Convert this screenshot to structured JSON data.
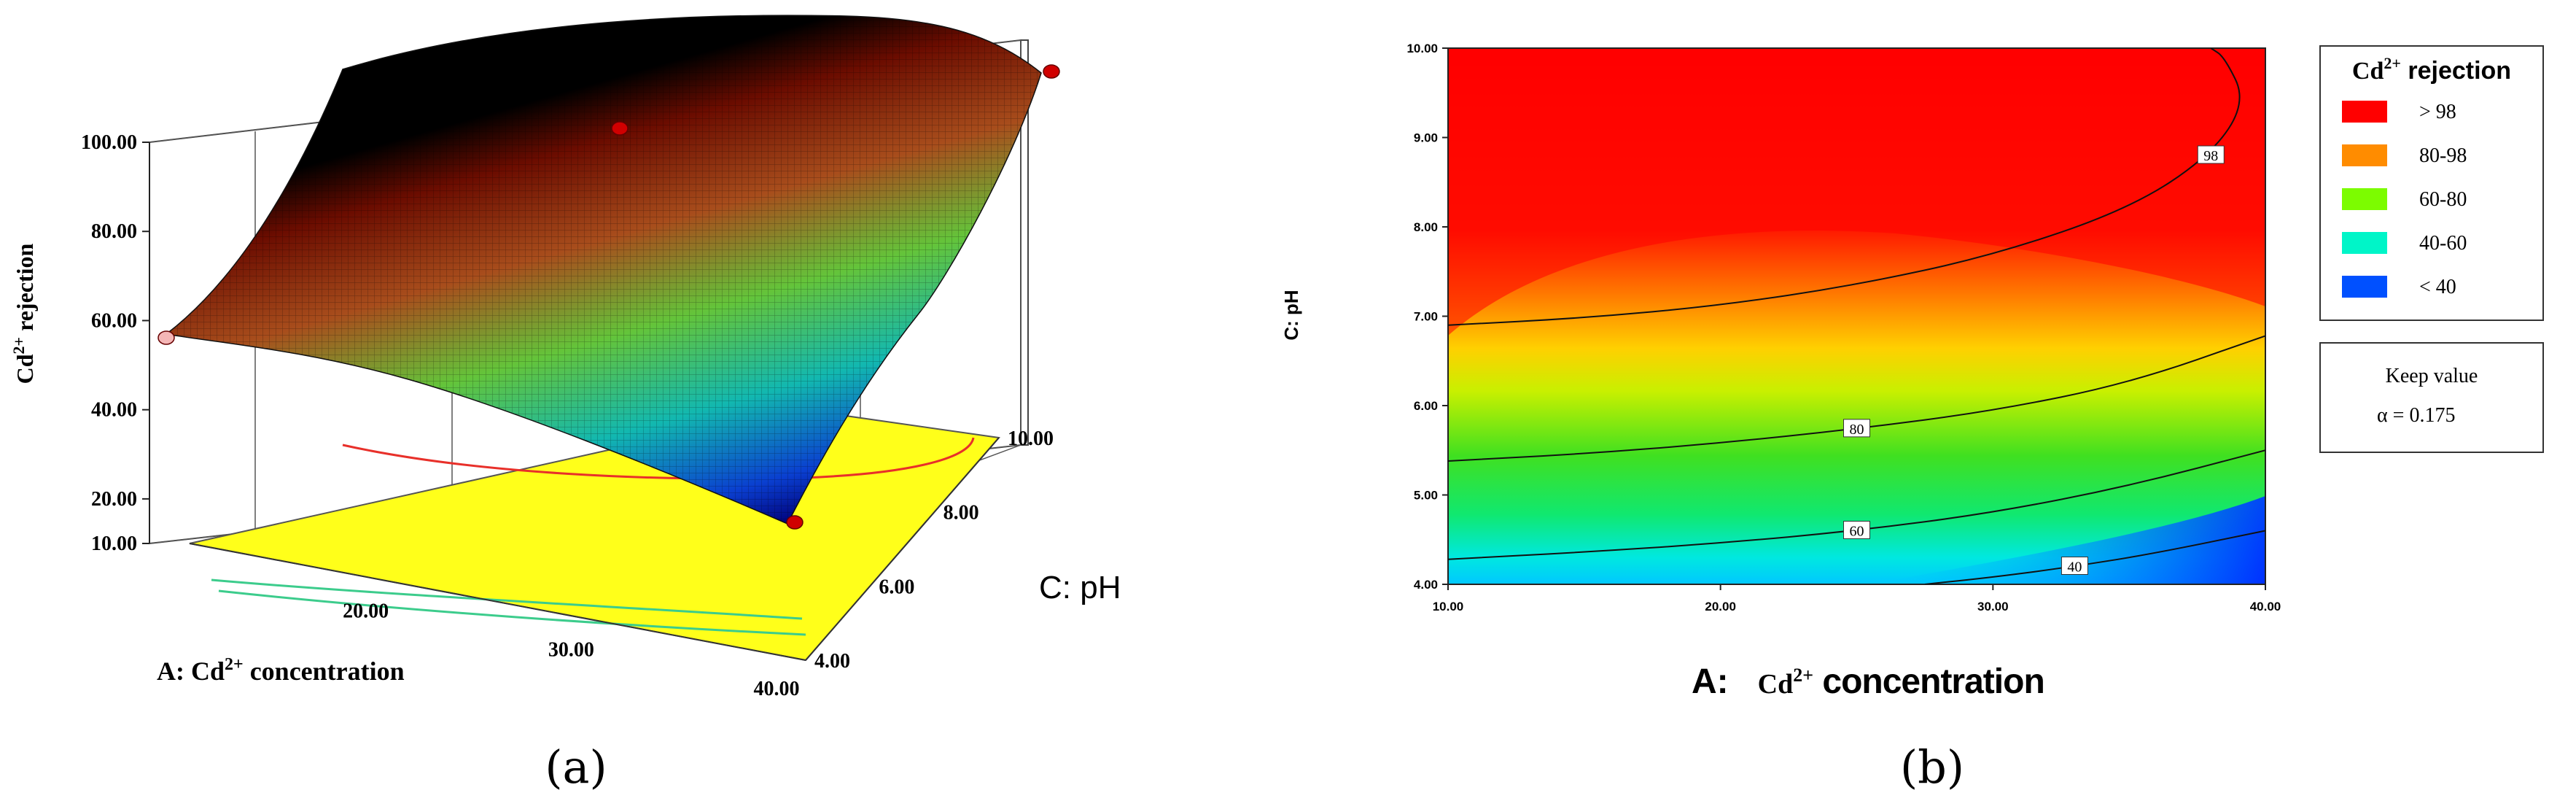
{
  "panels": {
    "a_label": "(a)",
    "b_label": "(b)"
  },
  "chart_data": [
    {
      "type": "surface",
      "panel": "(a)",
      "zlabel_main": "Cd",
      "zlabel_sup": "2+",
      "zlabel_rest": " rejection",
      "xlabel_main": "A: Cd",
      "xlabel_sup": "2+",
      "xlabel_rest": " concentration",
      "ylabel": "C: pH",
      "z_ticks": [
        "10.00",
        "20.00",
        "40.00",
        "60.00",
        "80.00",
        "100.00"
      ],
      "x_ticks": [
        "20.00",
        "30.00",
        "40.00"
      ],
      "y_ticks": [
        "4.00",
        "6.00",
        "8.00",
        "10.00"
      ],
      "xlim": [
        10,
        40
      ],
      "ylim": [
        4,
        10
      ],
      "zlim": [
        10,
        100
      ],
      "design_points": [
        {
          "x": 10,
          "y": 4,
          "z": 53
        },
        {
          "x": 10,
          "y": 10,
          "z": 100
        },
        {
          "x": 25,
          "y": 7,
          "z": 97
        },
        {
          "x": 40,
          "y": 4,
          "z": 22
        }
      ]
    },
    {
      "type": "contour",
      "panel": "(b)",
      "xlabel_prefix": "A:",
      "xlabel_main": "Cd",
      "xlabel_sup": "2+",
      "xlabel_rest": " concentration",
      "ylabel": "C: pH",
      "x_ticks": [
        "10.00",
        "20.00",
        "30.00",
        "40.00"
      ],
      "y_ticks": [
        "4.00",
        "5.00",
        "6.00",
        "7.00",
        "8.00",
        "9.00",
        "10.00"
      ],
      "xlim": [
        10,
        40
      ],
      "ylim": [
        4,
        10
      ],
      "contours": [
        {
          "level": 98,
          "label": "98",
          "points": [
            [
              10,
              6.9
            ],
            [
              15,
              6.98
            ],
            [
              20,
              7.12
            ],
            [
              25,
              7.35
            ],
            [
              30,
              7.68
            ],
            [
              35,
              8.2
            ],
            [
              38,
              8.8
            ],
            [
              39.3,
              9.4
            ],
            [
              38.5,
              9.9
            ],
            [
              38,
              10
            ]
          ]
        },
        {
          "level": 80,
          "label": "80",
          "points": [
            [
              10,
              5.38
            ],
            [
              15,
              5.46
            ],
            [
              20,
              5.58
            ],
            [
              25,
              5.74
            ],
            [
              30,
              5.94
            ],
            [
              35,
              6.25
            ],
            [
              40,
              6.78
            ]
          ]
        },
        {
          "level": 60,
          "label": "60",
          "points": [
            [
              10,
              4.28
            ],
            [
              15,
              4.36
            ],
            [
              20,
              4.46
            ],
            [
              25,
              4.6
            ],
            [
              30,
              4.8
            ],
            [
              35,
              5.1
            ],
            [
              40,
              5.5
            ]
          ]
        },
        {
          "level": 40,
          "label": "40",
          "points": [
            [
              27.5,
              4.0
            ],
            [
              30,
              4.08
            ],
            [
              33,
              4.2
            ],
            [
              36,
              4.35
            ],
            [
              40,
              4.6
            ]
          ]
        }
      ],
      "legend": {
        "title_main": "Cd",
        "title_sup": "2+",
        "title_rest": " rejection",
        "entries": [
          {
            "label": ">   98",
            "color": "#ff0000"
          },
          {
            "label": "80-98",
            "color": "#ff8c00"
          },
          {
            "label": "60-80",
            "color": "#7cfc00"
          },
          {
            "label": "40-60",
            "color": "#00f5c8"
          },
          {
            "label": "<   40",
            "color": "#0050ff"
          }
        ]
      },
      "note": {
        "line1": "Keep value",
        "line2": "α = 0.175"
      }
    }
  ]
}
